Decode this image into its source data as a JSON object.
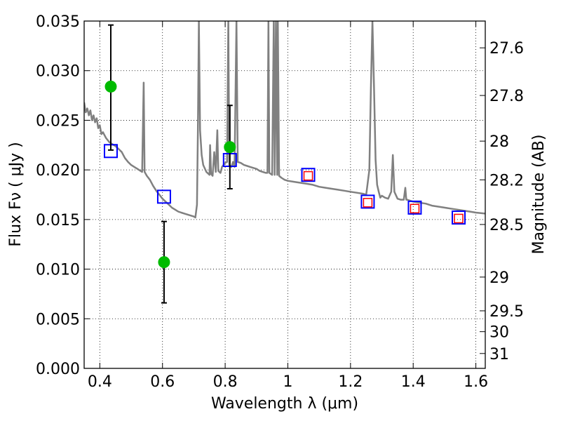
{
  "chart_data": {
    "type": "line",
    "xlabel": "Wavelength  λ (μm)",
    "ylabel": "Flux  Fν ( μJy )",
    "y2label": "Magnitude (AB)",
    "xlim": [
      0.35,
      1.63
    ],
    "ylim": [
      0.0,
      0.035
    ],
    "grid": true,
    "x_ticks": [
      0.4,
      0.6,
      0.8,
      1.0,
      1.2,
      1.4,
      1.6
    ],
    "x_tick_labels": [
      "0.4",
      "0.6",
      "0.8",
      "1",
      "1.2",
      "1.4",
      "1.6"
    ],
    "y_ticks": [
      0.0,
      0.005,
      0.01,
      0.015,
      0.02,
      0.025,
      0.03,
      0.035
    ],
    "y_tick_labels": [
      "0.000",
      "0.005",
      "0.010",
      "0.015",
      "0.020",
      "0.025",
      "0.030",
      "0.035"
    ],
    "right_ticks": [
      {
        "label": "27.6",
        "flux": 0.0323
      },
      {
        "label": "27.8",
        "flux": 0.0275
      },
      {
        "label": "28",
        "flux": 0.0229
      },
      {
        "label": "28.2",
        "flux": 0.019
      },
      {
        "label": "28.5",
        "flux": 0.0145
      },
      {
        "label": "29",
        "flux": 0.0092
      },
      {
        "label": "29.5",
        "flux": 0.0058
      },
      {
        "label": "30",
        "flux": 0.0037
      },
      {
        "label": "31",
        "flux": 0.0015
      }
    ],
    "series": [
      {
        "kind": "model-spectrum",
        "color": "#808080",
        "points": [
          [
            0.35,
            0.0268
          ],
          [
            0.355,
            0.0258
          ],
          [
            0.36,
            0.0262
          ],
          [
            0.365,
            0.0255
          ],
          [
            0.37,
            0.026
          ],
          [
            0.375,
            0.025
          ],
          [
            0.38,
            0.0255
          ],
          [
            0.385,
            0.0248
          ],
          [
            0.39,
            0.0252
          ],
          [
            0.395,
            0.0242
          ],
          [
            0.4,
            0.0245
          ],
          [
            0.405,
            0.0236
          ],
          [
            0.41,
            0.0238
          ],
          [
            0.42,
            0.0232
          ],
          [
            0.43,
            0.0228
          ],
          [
            0.44,
            0.0226
          ],
          [
            0.45,
            0.0224
          ],
          [
            0.46,
            0.0221
          ],
          [
            0.47,
            0.0218
          ],
          [
            0.48,
            0.0212
          ],
          [
            0.49,
            0.0208
          ],
          [
            0.5,
            0.0205
          ],
          [
            0.51,
            0.0203
          ],
          [
            0.52,
            0.0201
          ],
          [
            0.53,
            0.0199
          ],
          [
            0.535,
            0.0198
          ],
          [
            0.54,
            0.0288
          ],
          [
            0.543,
            0.0198
          ],
          [
            0.55,
            0.0194
          ],
          [
            0.56,
            0.019
          ],
          [
            0.57,
            0.0184
          ],
          [
            0.58,
            0.0179
          ],
          [
            0.59,
            0.0175
          ],
          [
            0.6,
            0.0171
          ],
          [
            0.61,
            0.0168
          ],
          [
            0.62,
            0.0165
          ],
          [
            0.63,
            0.0162
          ],
          [
            0.64,
            0.016
          ],
          [
            0.65,
            0.0158
          ],
          [
            0.66,
            0.0157
          ],
          [
            0.67,
            0.0156
          ],
          [
            0.68,
            0.0155
          ],
          [
            0.69,
            0.0154
          ],
          [
            0.7,
            0.0153
          ],
          [
            0.705,
            0.0152
          ],
          [
            0.71,
            0.0165
          ],
          [
            0.713,
            0.024
          ],
          [
            0.716,
            0.035
          ],
          [
            0.72,
            0.024
          ],
          [
            0.725,
            0.0215
          ],
          [
            0.73,
            0.0205
          ],
          [
            0.74,
            0.0198
          ],
          [
            0.75,
            0.0195
          ],
          [
            0.752,
            0.0225
          ],
          [
            0.755,
            0.0196
          ],
          [
            0.76,
            0.0194
          ],
          [
            0.765,
            0.0218
          ],
          [
            0.77,
            0.0198
          ],
          [
            0.775,
            0.024
          ],
          [
            0.778,
            0.0199
          ],
          [
            0.785,
            0.0197
          ],
          [
            0.79,
            0.0203
          ],
          [
            0.8,
            0.0207
          ],
          [
            0.806,
            0.0208
          ],
          [
            0.81,
            0.035
          ],
          [
            0.813,
            0.0205
          ],
          [
            0.82,
            0.0203
          ],
          [
            0.825,
            0.0208
          ],
          [
            0.83,
            0.0203
          ],
          [
            0.836,
            0.035
          ],
          [
            0.84,
            0.0208
          ],
          [
            0.85,
            0.0207
          ],
          [
            0.86,
            0.0205
          ],
          [
            0.87,
            0.0204
          ],
          [
            0.88,
            0.0203
          ],
          [
            0.89,
            0.0202
          ],
          [
            0.9,
            0.0201
          ],
          [
            0.91,
            0.0199
          ],
          [
            0.92,
            0.0198
          ],
          [
            0.93,
            0.0197
          ],
          [
            0.935,
            0.0197
          ],
          [
            0.938,
            0.035
          ],
          [
            0.941,
            0.0197
          ],
          [
            0.95,
            0.0195
          ],
          [
            0.955,
            0.035
          ],
          [
            0.958,
            0.0195
          ],
          [
            0.962,
            0.035
          ],
          [
            0.966,
            0.0195
          ],
          [
            0.968,
            0.035
          ],
          [
            0.972,
            0.0194
          ],
          [
            0.98,
            0.0192
          ],
          [
            0.99,
            0.019
          ],
          [
            1.0,
            0.0189
          ],
          [
            1.02,
            0.0188
          ],
          [
            1.04,
            0.0187
          ],
          [
            1.06,
            0.0186
          ],
          [
            1.08,
            0.0185
          ],
          [
            1.1,
            0.0183
          ],
          [
            1.12,
            0.0182
          ],
          [
            1.14,
            0.0181
          ],
          [
            1.16,
            0.018
          ],
          [
            1.18,
            0.0179
          ],
          [
            1.2,
            0.0178
          ],
          [
            1.22,
            0.0177
          ],
          [
            1.24,
            0.0176
          ],
          [
            1.25,
            0.0175
          ],
          [
            1.26,
            0.02
          ],
          [
            1.265,
            0.0282
          ],
          [
            1.27,
            0.035
          ],
          [
            1.275,
            0.0282
          ],
          [
            1.28,
            0.021
          ],
          [
            1.285,
            0.0185
          ],
          [
            1.29,
            0.0178
          ],
          [
            1.295,
            0.0172
          ],
          [
            1.3,
            0.0174
          ],
          [
            1.31,
            0.0172
          ],
          [
            1.32,
            0.0171
          ],
          [
            1.33,
            0.0178
          ],
          [
            1.335,
            0.0215
          ],
          [
            1.34,
            0.0178
          ],
          [
            1.35,
            0.0171
          ],
          [
            1.36,
            0.017
          ],
          [
            1.37,
            0.017
          ],
          [
            1.375,
            0.0182
          ],
          [
            1.378,
            0.017
          ],
          [
            1.38,
            0.017
          ],
          [
            1.4,
            0.0168
          ],
          [
            1.42,
            0.0167
          ],
          [
            1.44,
            0.0166
          ],
          [
            1.46,
            0.0164
          ],
          [
            1.48,
            0.0163
          ],
          [
            1.5,
            0.0162
          ],
          [
            1.52,
            0.0161
          ],
          [
            1.54,
            0.016
          ],
          [
            1.56,
            0.0159
          ],
          [
            1.58,
            0.0158
          ],
          [
            1.6,
            0.0157
          ],
          [
            1.63,
            0.0156
          ]
        ]
      },
      {
        "kind": "model-photometry",
        "marker": "open-square",
        "color": "#0000ff",
        "points": [
          [
            0.435,
            0.0219
          ],
          [
            0.605,
            0.0173
          ],
          [
            0.815,
            0.021
          ],
          [
            1.065,
            0.0195
          ],
          [
            1.255,
            0.0168
          ],
          [
            1.405,
            0.0162
          ],
          [
            1.545,
            0.0152
          ]
        ]
      },
      {
        "kind": "observed-photometry",
        "marker": "open-square",
        "color": "#ff0000",
        "points": [
          [
            1.065,
            0.0194
          ],
          [
            1.255,
            0.0167
          ],
          [
            1.405,
            0.0161
          ],
          [
            1.545,
            0.0151
          ]
        ]
      },
      {
        "kind": "observed-photometry",
        "marker": "filled-circle",
        "color": "#00bb00",
        "points": [
          {
            "x": 0.435,
            "y": 0.0284,
            "ylow": 0.022,
            "yhigh": 0.0346
          },
          {
            "x": 0.605,
            "y": 0.0107,
            "ylow": 0.0066,
            "yhigh": 0.0148
          },
          {
            "x": 0.815,
            "y": 0.0223,
            "ylow": 0.0181,
            "yhigh": 0.0265
          }
        ]
      }
    ]
  }
}
